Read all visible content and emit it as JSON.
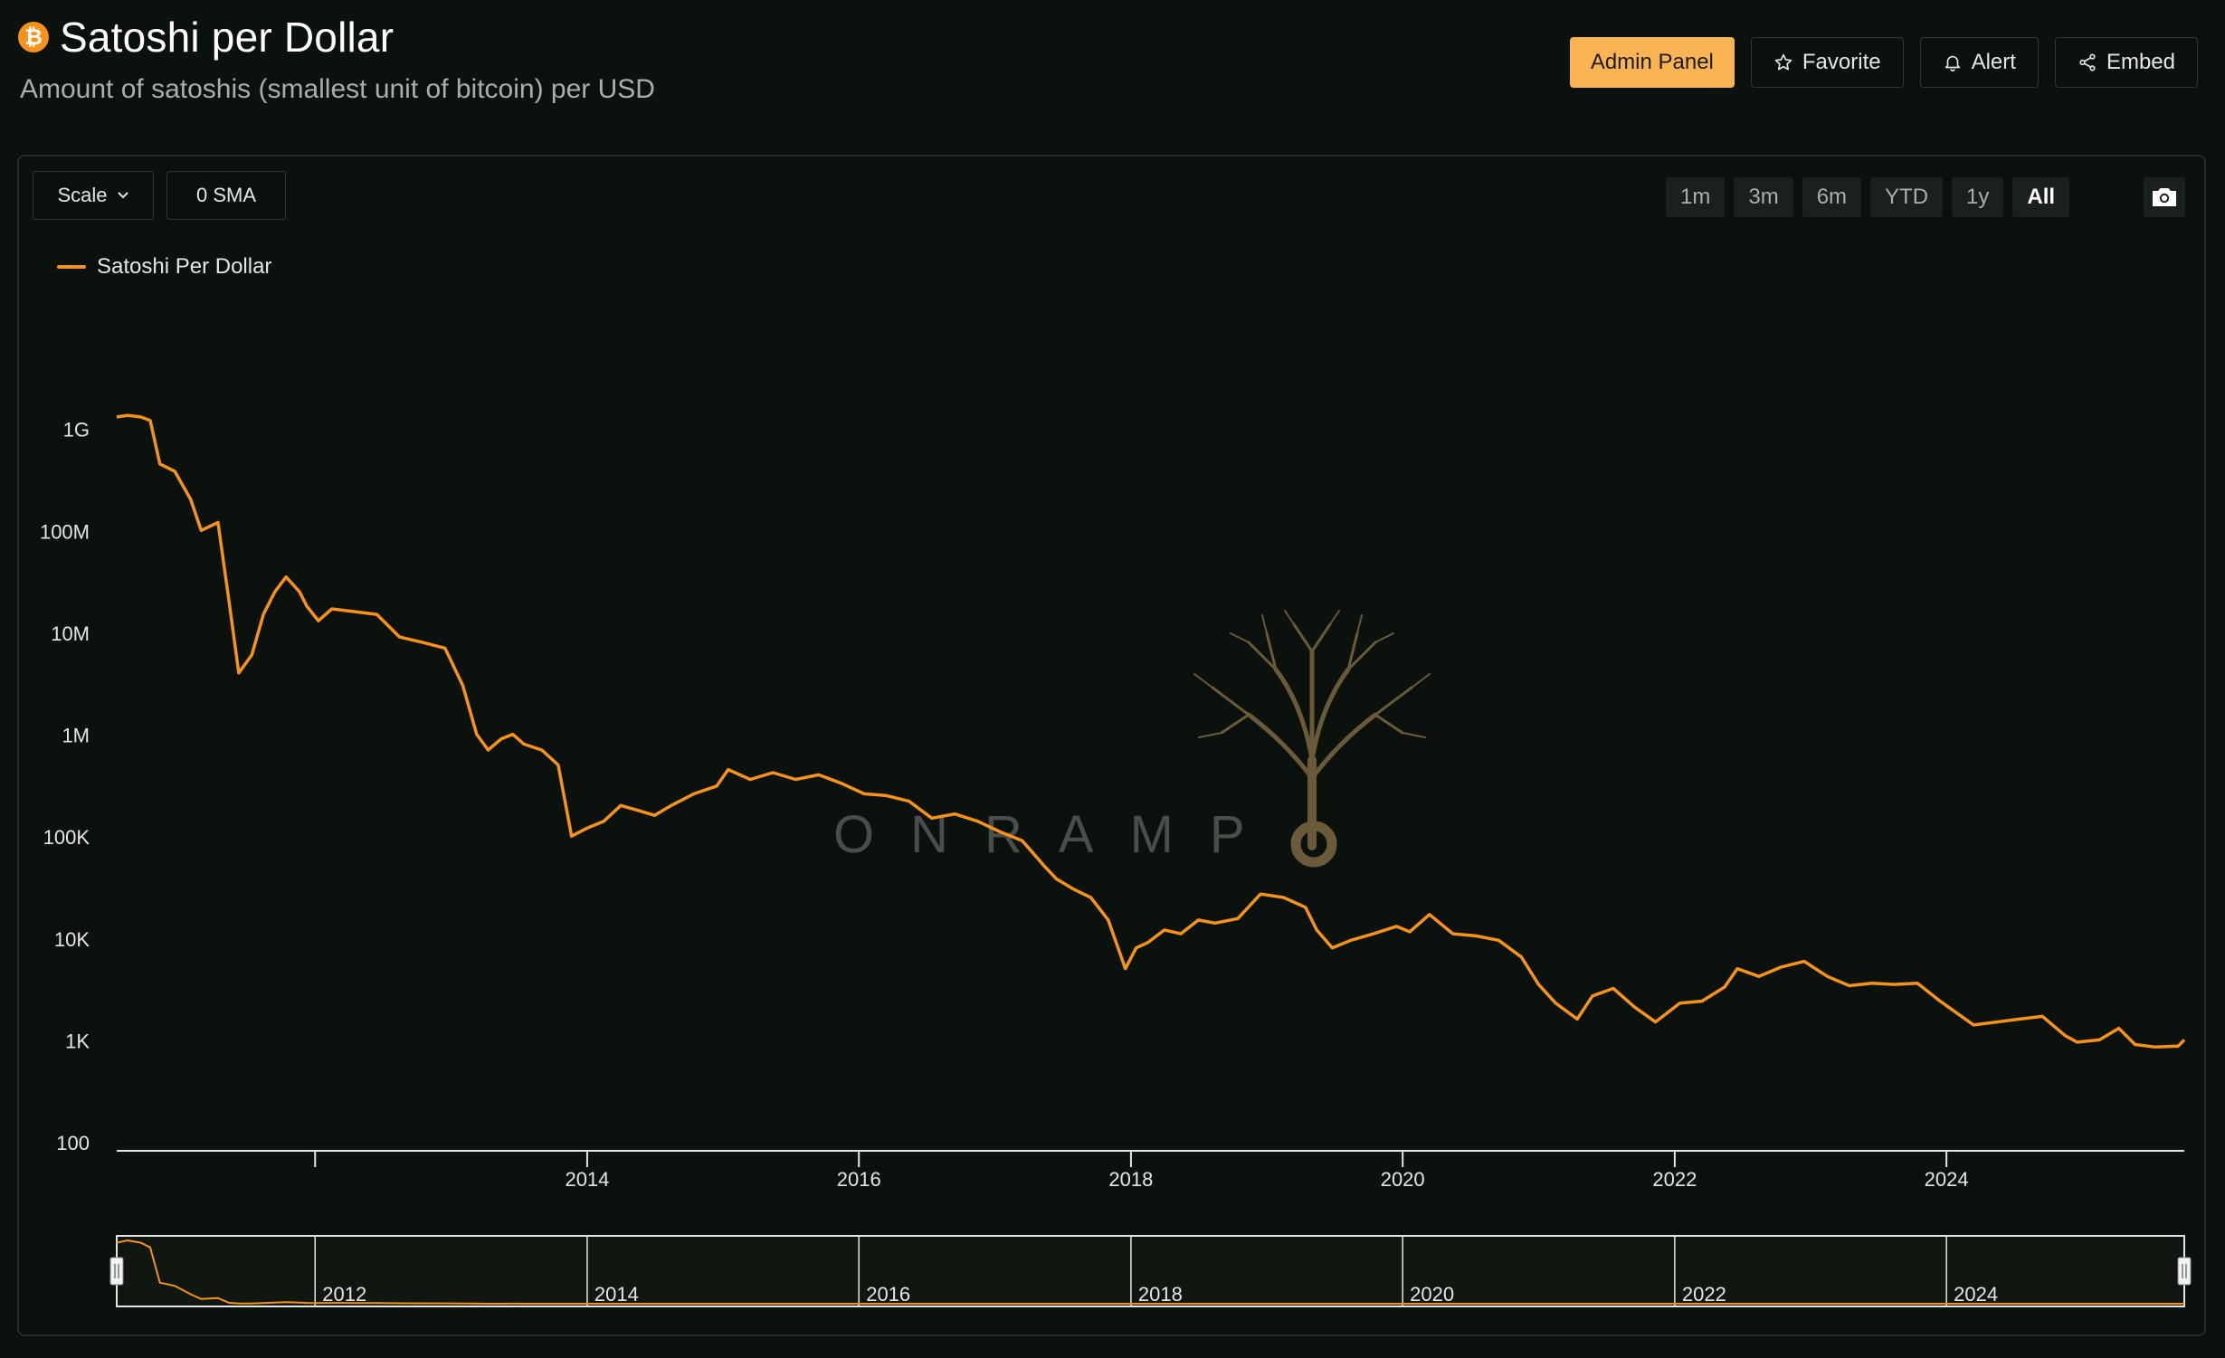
{
  "header": {
    "title": "Satoshi per Dollar",
    "subtitle": "Amount of satoshis (smallest unit of bitcoin) per USD",
    "badge_icon": "bitcoin-icon",
    "actions": [
      {
        "label": "Admin Panel",
        "icon": "",
        "primary": true
      },
      {
        "label": "Favorite",
        "icon": "star-icon"
      },
      {
        "label": "Alert",
        "icon": "bell-icon"
      },
      {
        "label": "Embed",
        "icon": "share-icon"
      }
    ]
  },
  "toolbar": {
    "scale_label": "Scale",
    "sma_label": "0 SMA",
    "ranges": [
      "1m",
      "3m",
      "6m",
      "YTD",
      "1y",
      "All"
    ],
    "active_range": "All",
    "camera_icon": "camera-icon"
  },
  "colors": {
    "background": "#0b110c",
    "series": "#f7931a",
    "accent_button": "#fbb454",
    "axis_text": "#e6e6e6",
    "watermark": "#6b5a3a"
  },
  "watermark": {
    "text": "ONRAMP",
    "icon": "tree-icon"
  },
  "chart_data": {
    "type": "line",
    "scale": "log",
    "title": "",
    "legend": {
      "entries": [
        "Satoshi Per Dollar"
      ],
      "placement": "top-left"
    },
    "y_ticks": [
      {
        "value": 1000000000,
        "label": "1G"
      },
      {
        "value": 100000000,
        "label": "100M"
      },
      {
        "value": 10000000,
        "label": "10M"
      },
      {
        "value": 1000000,
        "label": "1M"
      },
      {
        "value": 100000,
        "label": "100K"
      },
      {
        "value": 10000,
        "label": "10K"
      },
      {
        "value": 1000,
        "label": "1K"
      },
      {
        "value": 100,
        "label": "100"
      }
    ],
    "ylim": [
      100,
      3000000000
    ],
    "xlim": [
      "2010-07-17",
      "2025-10-01"
    ],
    "x_ticks": [
      {
        "value": "2012-01-01",
        "label": ""
      },
      {
        "value": "2014-01-01",
        "label": "2014"
      },
      {
        "value": "2016-01-01",
        "label": "2016"
      },
      {
        "value": "2018-01-01",
        "label": "2018"
      },
      {
        "value": "2020-01-01",
        "label": "2020"
      },
      {
        "value": "2022-01-01",
        "label": "2022"
      },
      {
        "value": "2024-01-01",
        "label": "2024"
      }
    ],
    "navigator_ticks": [
      {
        "value": "2012-01-01",
        "label": "2012"
      },
      {
        "value": "2014-01-01",
        "label": "2014"
      },
      {
        "value": "2016-01-01",
        "label": "2016"
      },
      {
        "value": "2018-01-01",
        "label": "2018"
      },
      {
        "value": "2020-01-01",
        "label": "2020"
      },
      {
        "value": "2022-01-01",
        "label": "2022"
      },
      {
        "value": "2024-01-01",
        "label": "2024"
      }
    ],
    "grid": false,
    "series": [
      {
        "name": "Satoshi Per Dollar",
        "points": [
          [
            "2010-07-17",
            1300000000
          ],
          [
            "2010-08-15",
            1350000000
          ],
          [
            "2010-09-20",
            1300000000
          ],
          [
            "2010-10-15",
            1200000000
          ],
          [
            "2010-11-10",
            450000000
          ],
          [
            "2010-12-20",
            380000000
          ],
          [
            "2011-02-01",
            200000000
          ],
          [
            "2011-03-01",
            100000000
          ],
          [
            "2011-04-15",
            120000000
          ],
          [
            "2011-05-15",
            20000000
          ],
          [
            "2011-06-10",
            4000000
          ],
          [
            "2011-07-15",
            6000000
          ],
          [
            "2011-08-15",
            15000000
          ],
          [
            "2011-09-15",
            25000000
          ],
          [
            "2011-10-15",
            35000000
          ],
          [
            "2011-11-20",
            25000000
          ],
          [
            "2011-12-10",
            18000000
          ],
          [
            "2012-01-10",
            13000000
          ],
          [
            "2012-02-15",
            17000000
          ],
          [
            "2012-04-15",
            16000000
          ],
          [
            "2012-06-15",
            15000000
          ],
          [
            "2012-08-15",
            9000000
          ],
          [
            "2012-10-15",
            8000000
          ],
          [
            "2012-12-15",
            7000000
          ],
          [
            "2013-02-01",
            3000000
          ],
          [
            "2013-03-10",
            1000000
          ],
          [
            "2013-04-10",
            700000
          ],
          [
            "2013-05-15",
            900000
          ],
          [
            "2013-06-15",
            1000000
          ],
          [
            "2013-07-15",
            800000
          ],
          [
            "2013-09-01",
            700000
          ],
          [
            "2013-10-15",
            500000
          ],
          [
            "2013-11-20",
            100000
          ],
          [
            "2014-01-01",
            120000
          ],
          [
            "2014-02-15",
            140000
          ],
          [
            "2014-04-01",
            200000
          ],
          [
            "2014-05-15",
            180000
          ],
          [
            "2014-07-01",
            160000
          ],
          [
            "2014-08-15",
            200000
          ],
          [
            "2014-10-15",
            260000
          ],
          [
            "2014-12-15",
            310000
          ],
          [
            "2015-01-15",
            450000
          ],
          [
            "2015-03-15",
            360000
          ],
          [
            "2015-05-15",
            420000
          ],
          [
            "2015-07-15",
            360000
          ],
          [
            "2015-09-15",
            400000
          ],
          [
            "2015-11-15",
            330000
          ],
          [
            "2016-01-15",
            260000
          ],
          [
            "2016-03-15",
            250000
          ],
          [
            "2016-05-15",
            220000
          ],
          [
            "2016-07-15",
            150000
          ],
          [
            "2016-09-15",
            165000
          ],
          [
            "2016-11-15",
            140000
          ],
          [
            "2017-01-15",
            110000
          ],
          [
            "2017-03-15",
            90000
          ],
          [
            "2017-05-15",
            50000
          ],
          [
            "2017-06-15",
            38000
          ],
          [
            "2017-08-01",
            30000
          ],
          [
            "2017-09-15",
            25000
          ],
          [
            "2017-11-01",
            15000
          ],
          [
            "2017-12-17",
            5000
          ],
          [
            "2018-01-15",
            8000
          ],
          [
            "2018-02-15",
            9000
          ],
          [
            "2018-04-01",
            12000
          ],
          [
            "2018-05-15",
            11000
          ],
          [
            "2018-07-01",
            15000
          ],
          [
            "2018-08-15",
            14000
          ],
          [
            "2018-10-15",
            15500
          ],
          [
            "2018-12-15",
            27000
          ],
          [
            "2019-02-15",
            25000
          ],
          [
            "2019-04-15",
            20000
          ],
          [
            "2019-05-15",
            12000
          ],
          [
            "2019-06-26",
            8000
          ],
          [
            "2019-08-15",
            9500
          ],
          [
            "2019-10-15",
            11000
          ],
          [
            "2019-12-15",
            13000
          ],
          [
            "2020-01-20",
            11500
          ],
          [
            "2020-03-13",
            17000
          ],
          [
            "2020-05-15",
            11000
          ],
          [
            "2020-07-15",
            10500
          ],
          [
            "2020-09-15",
            9500
          ],
          [
            "2020-11-15",
            6500
          ],
          [
            "2020-12-31",
            3500
          ],
          [
            "2021-02-15",
            2300
          ],
          [
            "2021-04-14",
            1600
          ],
          [
            "2021-05-25",
            2700
          ],
          [
            "2021-07-20",
            3200
          ],
          [
            "2021-09-15",
            2100
          ],
          [
            "2021-11-10",
            1500
          ],
          [
            "2022-01-15",
            2300
          ],
          [
            "2022-03-15",
            2400
          ],
          [
            "2022-05-15",
            3300
          ],
          [
            "2022-06-18",
            5000
          ],
          [
            "2022-08-15",
            4200
          ],
          [
            "2022-10-15",
            5200
          ],
          [
            "2022-12-15",
            5900
          ],
          [
            "2023-02-15",
            4200
          ],
          [
            "2023-04-15",
            3400
          ],
          [
            "2023-06-15",
            3600
          ],
          [
            "2023-08-15",
            3500
          ],
          [
            "2023-10-15",
            3600
          ],
          [
            "2023-12-15",
            2400
          ],
          [
            "2024-03-14",
            1400
          ],
          [
            "2024-05-15",
            1500
          ],
          [
            "2024-07-15",
            1600
          ],
          [
            "2024-09-15",
            1700
          ],
          [
            "2024-11-15",
            1100
          ],
          [
            "2024-12-17",
            950
          ],
          [
            "2025-02-15",
            1000
          ],
          [
            "2025-04-08",
            1300
          ],
          [
            "2025-05-22",
            900
          ],
          [
            "2025-07-15",
            850
          ],
          [
            "2025-08-15",
            860
          ],
          [
            "2025-09-15",
            870
          ],
          [
            "2025-10-01",
            1000
          ]
        ]
      }
    ]
  }
}
